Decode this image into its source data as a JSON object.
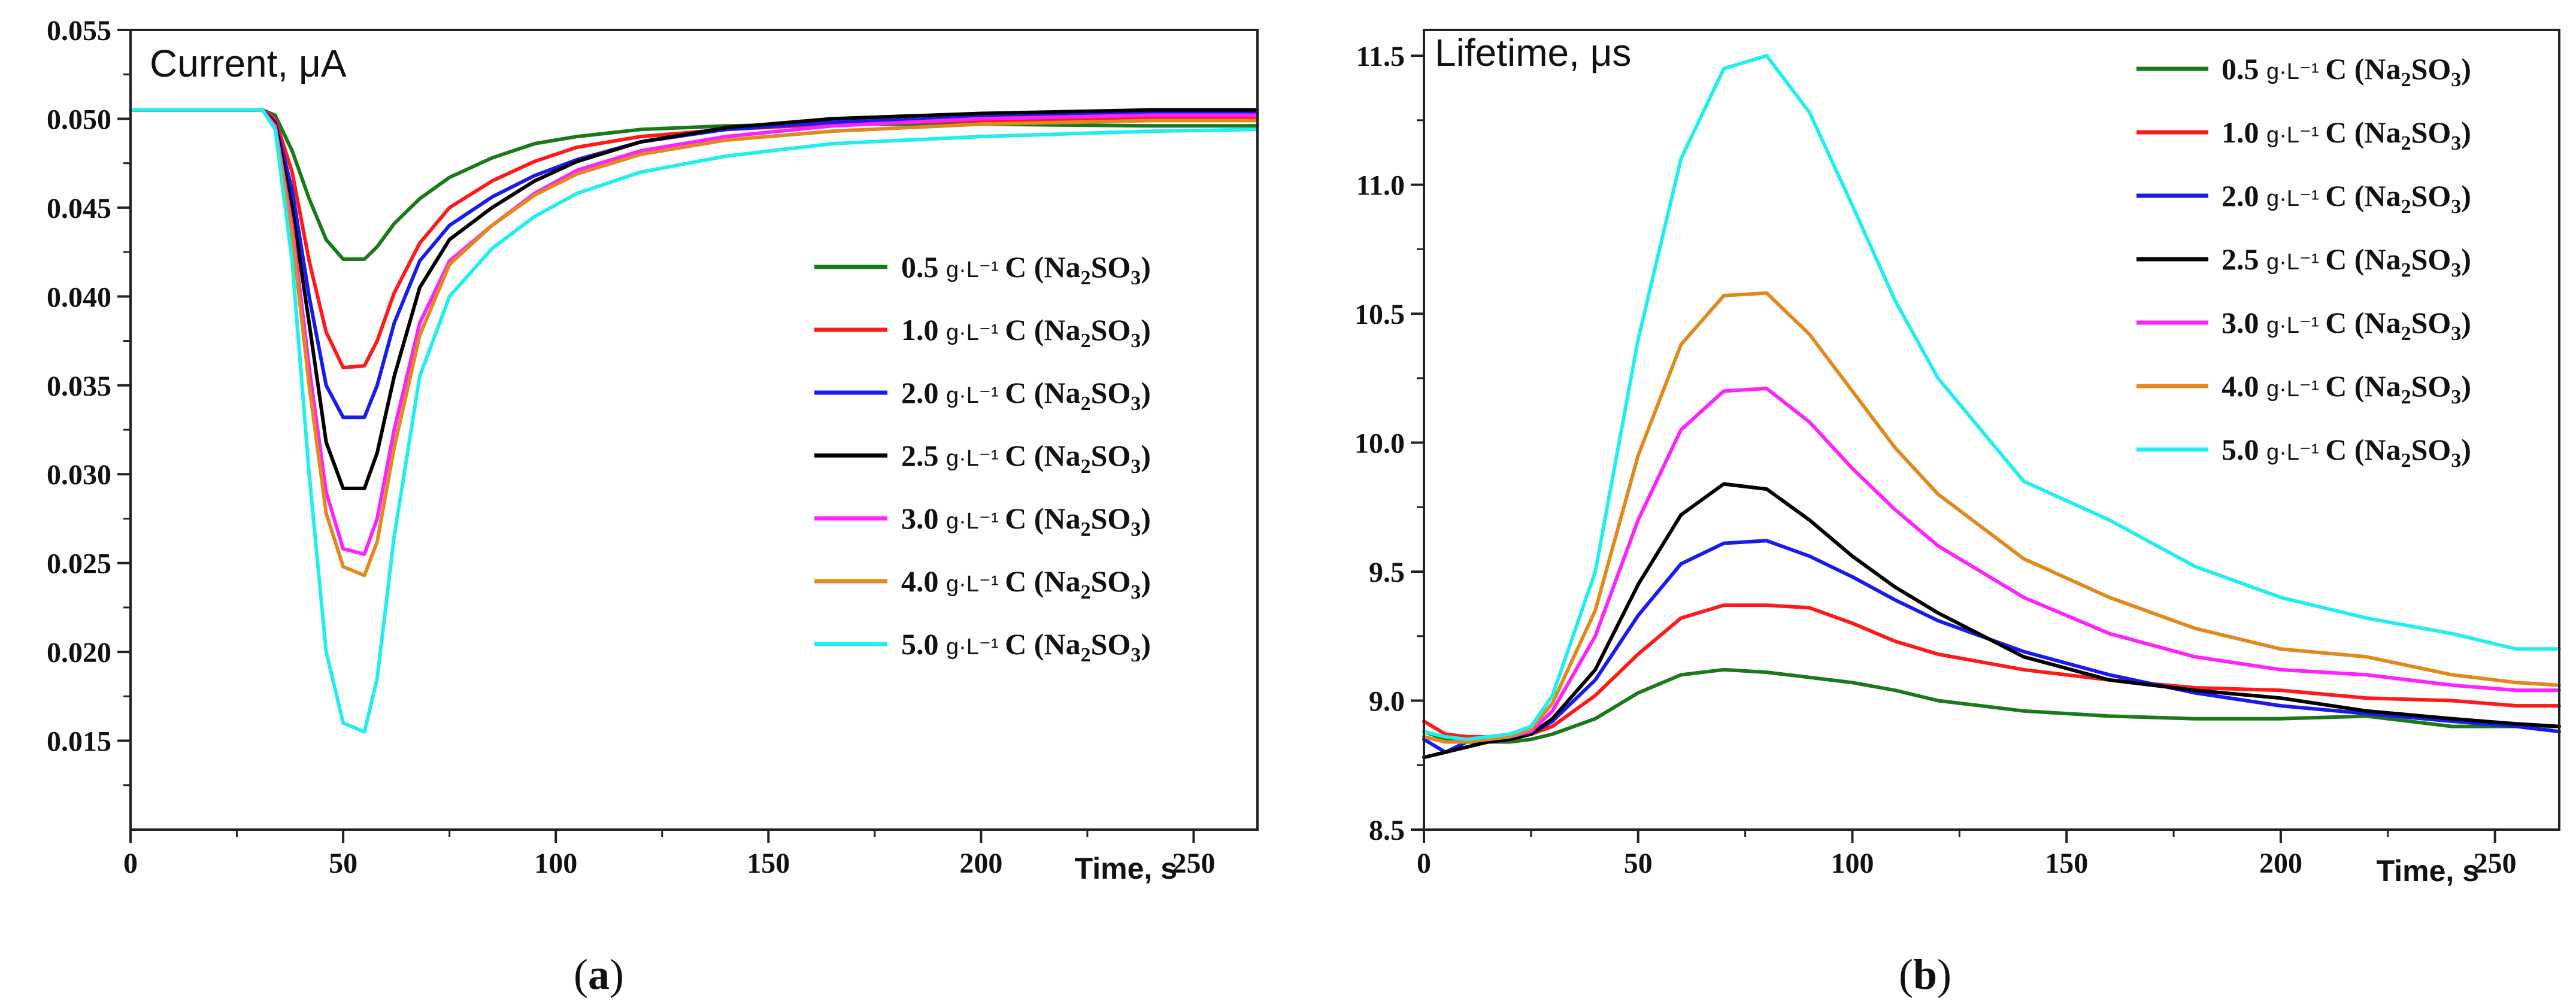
{
  "colors": {
    "s05": "#1a7a1a",
    "s10": "#ff1a1a",
    "s20": "#1a1aee",
    "s25": "#000000",
    "s30": "#ff22ff",
    "s40": "#e08a1e",
    "s50": "#22eeee"
  },
  "legend_unit": "g·L⁻¹",
  "chart_data": [
    {
      "type": "line",
      "panel_label": "a",
      "title": "Current, μA",
      "xlabel": "Time, s",
      "ylabel": "",
      "xlim": [
        0,
        265
      ],
      "ylim": [
        0.01,
        0.055
      ],
      "xticks": [
        "0",
        "50",
        "100",
        "150",
        "200",
        "250"
      ],
      "xtick_values": [
        0,
        50,
        100,
        150,
        200,
        250
      ],
      "yticks": [
        "0.015",
        "0.020",
        "0.025",
        "0.030",
        "0.035",
        "0.040",
        "0.045",
        "0.050",
        "0.055"
      ],
      "ytick_values": [
        0.015,
        0.02,
        0.025,
        0.03,
        0.035,
        0.04,
        0.045,
        0.05,
        0.055
      ],
      "series": [
        {
          "name": "0.5",
          "label": "C (Na2SO3)",
          "color_key": "s05",
          "x": [
            0,
            31,
            34,
            38,
            42,
            46,
            50,
            55,
            58,
            62,
            68,
            75,
            85,
            95,
            105,
            120,
            140,
            165,
            200,
            240,
            265
          ],
          "y": [
            0.0505,
            0.0505,
            0.0502,
            0.0482,
            0.0455,
            0.0432,
            0.0421,
            0.0421,
            0.0428,
            0.0441,
            0.0455,
            0.0467,
            0.0478,
            0.0486,
            0.049,
            0.0494,
            0.0496,
            0.0497,
            0.0497,
            0.0496,
            0.0496
          ]
        },
        {
          "name": "1.0",
          "label": "C (Na2SO3)",
          "color_key": "s10",
          "x": [
            0,
            31,
            34,
            38,
            42,
            46,
            50,
            55,
            58,
            62,
            68,
            75,
            85,
            95,
            105,
            120,
            140,
            165,
            200,
            240,
            265
          ],
          "y": [
            0.0505,
            0.0505,
            0.05,
            0.047,
            0.042,
            0.038,
            0.036,
            0.0361,
            0.0375,
            0.0402,
            0.043,
            0.045,
            0.0465,
            0.0476,
            0.0484,
            0.049,
            0.0494,
            0.0497,
            0.0499,
            0.05,
            0.05
          ]
        },
        {
          "name": "2.0",
          "label": "C (Na2SO3)",
          "color_key": "s20",
          "x": [
            0,
            31,
            34,
            38,
            42,
            46,
            50,
            55,
            58,
            62,
            68,
            75,
            85,
            95,
            105,
            120,
            140,
            165,
            200,
            240,
            265
          ],
          "y": [
            0.0505,
            0.0505,
            0.0498,
            0.046,
            0.04,
            0.035,
            0.0332,
            0.0332,
            0.035,
            0.0385,
            0.042,
            0.044,
            0.0456,
            0.0468,
            0.0477,
            0.0487,
            0.0494,
            0.0498,
            0.0501,
            0.0503,
            0.0503
          ]
        },
        {
          "name": "2.5",
          "label": "C (Na2SO3)",
          "color_key": "s25",
          "x": [
            0,
            31,
            34,
            38,
            42,
            46,
            50,
            55,
            58,
            62,
            68,
            75,
            85,
            95,
            105,
            120,
            140,
            165,
            200,
            240,
            265
          ],
          "y": [
            0.0505,
            0.0505,
            0.0497,
            0.045,
            0.0385,
            0.0318,
            0.0292,
            0.0292,
            0.0312,
            0.0355,
            0.0405,
            0.0432,
            0.045,
            0.0465,
            0.0476,
            0.0487,
            0.0495,
            0.05,
            0.0503,
            0.0505,
            0.0505
          ]
        },
        {
          "name": "3.0",
          "label": "C (Na2SO3)",
          "color_key": "s30",
          "x": [
            0,
            31,
            34,
            38,
            42,
            46,
            50,
            55,
            58,
            62,
            68,
            75,
            85,
            95,
            105,
            120,
            140,
            165,
            200,
            240,
            265
          ],
          "y": [
            0.0505,
            0.0505,
            0.0496,
            0.044,
            0.036,
            0.029,
            0.0258,
            0.0255,
            0.0275,
            0.0325,
            0.0385,
            0.042,
            0.044,
            0.0458,
            0.0471,
            0.0482,
            0.049,
            0.0496,
            0.05,
            0.0502,
            0.0502
          ]
        },
        {
          "name": "4.0",
          "label": "C (Na2SO3)",
          "color_key": "s40",
          "x": [
            0,
            31,
            34,
            38,
            42,
            46,
            50,
            55,
            58,
            62,
            68,
            75,
            85,
            95,
            105,
            120,
            140,
            165,
            200,
            240,
            265
          ],
          "y": [
            0.0505,
            0.0505,
            0.0495,
            0.0435,
            0.035,
            0.0278,
            0.0248,
            0.0243,
            0.0262,
            0.0315,
            0.0378,
            0.0418,
            0.044,
            0.0457,
            0.0469,
            0.048,
            0.0488,
            0.0493,
            0.0497,
            0.0499,
            0.0499
          ]
        },
        {
          "name": "5.0",
          "label": "C (Na2SO3)",
          "color_key": "s50",
          "x": [
            0,
            31,
            34,
            38,
            42,
            46,
            50,
            55,
            58,
            62,
            68,
            75,
            85,
            95,
            105,
            120,
            140,
            165,
            200,
            240,
            265
          ],
          "y": [
            0.0505,
            0.0505,
            0.0494,
            0.042,
            0.03,
            0.02,
            0.016,
            0.0155,
            0.0185,
            0.0265,
            0.0355,
            0.04,
            0.0427,
            0.0445,
            0.0458,
            0.047,
            0.0479,
            0.0486,
            0.049,
            0.0493,
            0.0494
          ]
        }
      ]
    },
    {
      "type": "line",
      "panel_label": "b",
      "title": "Lifetime, μs",
      "xlabel": "Time, s",
      "ylabel": "",
      "xlim": [
        0,
        265
      ],
      "ylim": [
        8.5,
        11.6
      ],
      "xticks": [
        "0",
        "50",
        "100",
        "150",
        "200",
        "250"
      ],
      "xtick_values": [
        0,
        50,
        100,
        150,
        200,
        250
      ],
      "yticks": [
        "8.5",
        "9.0",
        "9.5",
        "10.0",
        "10.5",
        "11.0",
        "11.5"
      ],
      "ytick_values": [
        8.5,
        9.0,
        9.5,
        10.0,
        10.5,
        11.0,
        11.5
      ],
      "series": [
        {
          "name": "0.5",
          "label": "C (Na2SO3)",
          "color_key": "s05",
          "x": [
            0,
            5,
            10,
            15,
            20,
            25,
            30,
            40,
            50,
            60,
            70,
            80,
            90,
            100,
            110,
            120,
            140,
            160,
            180,
            200,
            220,
            240,
            255,
            265
          ],
          "y": [
            8.88,
            8.85,
            8.84,
            8.84,
            8.84,
            8.85,
            8.87,
            8.93,
            9.03,
            9.1,
            9.12,
            9.11,
            9.09,
            9.07,
            9.04,
            9.0,
            8.96,
            8.94,
            8.93,
            8.93,
            8.94,
            8.9,
            8.9,
            8.9
          ]
        },
        {
          "name": "1.0",
          "label": "C (Na2SO3)",
          "color_key": "s10",
          "x": [
            0,
            5,
            10,
            15,
            20,
            25,
            30,
            40,
            50,
            60,
            70,
            80,
            90,
            100,
            110,
            120,
            140,
            160,
            180,
            200,
            220,
            240,
            255,
            265
          ],
          "y": [
            8.92,
            8.87,
            8.86,
            8.86,
            8.86,
            8.87,
            8.9,
            9.02,
            9.18,
            9.32,
            9.37,
            9.37,
            9.36,
            9.3,
            9.23,
            9.18,
            9.12,
            9.08,
            9.05,
            9.04,
            9.01,
            9.0,
            8.98,
            8.98
          ]
        },
        {
          "name": "2.0",
          "label": "C (Na2SO3)",
          "color_key": "s20",
          "x": [
            0,
            5,
            10,
            15,
            20,
            25,
            30,
            40,
            50,
            60,
            70,
            80,
            90,
            100,
            110,
            120,
            140,
            160,
            180,
            200,
            220,
            240,
            255,
            265
          ],
          "y": [
            8.85,
            8.8,
            8.84,
            8.85,
            8.85,
            8.87,
            8.92,
            9.08,
            9.33,
            9.53,
            9.61,
            9.62,
            9.56,
            9.48,
            9.39,
            9.31,
            9.19,
            9.1,
            9.03,
            8.98,
            8.95,
            8.92,
            8.9,
            8.88
          ]
        },
        {
          "name": "2.5",
          "label": "C (Na2SO3)",
          "color_key": "s25",
          "x": [
            0,
            5,
            10,
            15,
            20,
            25,
            30,
            40,
            50,
            60,
            70,
            80,
            90,
            100,
            110,
            120,
            140,
            160,
            180,
            200,
            220,
            240,
            255,
            265
          ],
          "y": [
            8.78,
            8.8,
            8.82,
            8.84,
            8.85,
            8.87,
            8.93,
            9.12,
            9.45,
            9.72,
            9.84,
            9.82,
            9.7,
            9.56,
            9.44,
            9.34,
            9.17,
            9.08,
            9.04,
            9.01,
            8.96,
            8.93,
            8.91,
            8.9
          ]
        },
        {
          "name": "3.0",
          "label": "C (Na2SO3)",
          "color_key": "s30",
          "x": [
            0,
            5,
            10,
            15,
            20,
            25,
            30,
            40,
            50,
            60,
            70,
            80,
            90,
            100,
            110,
            120,
            140,
            160,
            180,
            200,
            220,
            240,
            255,
            265
          ],
          "y": [
            8.86,
            8.84,
            8.84,
            8.85,
            8.86,
            8.88,
            8.96,
            9.25,
            9.7,
            10.05,
            10.2,
            10.21,
            10.08,
            9.9,
            9.74,
            9.6,
            9.4,
            9.26,
            9.17,
            9.12,
            9.1,
            9.06,
            9.04,
            9.04
          ]
        },
        {
          "name": "4.0",
          "label": "C (Na2SO3)",
          "color_key": "s40",
          "x": [
            0,
            5,
            10,
            15,
            20,
            25,
            30,
            40,
            50,
            60,
            70,
            80,
            90,
            100,
            110,
            120,
            140,
            160,
            180,
            200,
            220,
            240,
            255,
            265
          ],
          "y": [
            8.86,
            8.84,
            8.84,
            8.85,
            8.86,
            8.89,
            8.99,
            9.35,
            9.95,
            10.38,
            10.57,
            10.58,
            10.42,
            10.2,
            9.98,
            9.8,
            9.55,
            9.4,
            9.28,
            9.2,
            9.17,
            9.1,
            9.07,
            9.06
          ]
        },
        {
          "name": "5.0",
          "label": "C (Na2SO3)",
          "color_key": "s50",
          "x": [
            0,
            5,
            10,
            15,
            20,
            25,
            30,
            40,
            50,
            60,
            70,
            80,
            90,
            100,
            110,
            120,
            140,
            160,
            180,
            200,
            220,
            240,
            255,
            265
          ],
          "y": [
            8.88,
            8.86,
            8.85,
            8.86,
            8.87,
            8.9,
            9.02,
            9.5,
            10.4,
            11.1,
            11.45,
            11.5,
            11.28,
            10.92,
            10.55,
            10.25,
            9.85,
            9.7,
            9.52,
            9.4,
            9.32,
            9.26,
            9.2,
            9.2
          ]
        }
      ]
    }
  ]
}
